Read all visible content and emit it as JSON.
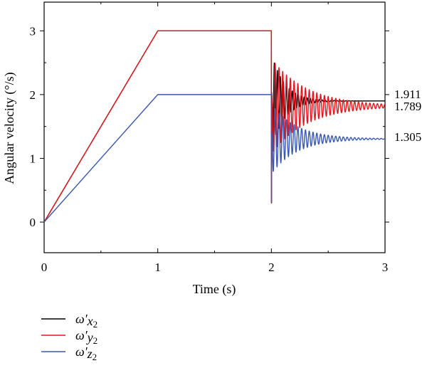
{
  "chart_data": {
    "type": "line",
    "xlabel": "Time (s)",
    "ylabel": "Angular velocity (°/s)",
    "xlim": [
      0,
      3
    ],
    "ylim": [
      -0.48,
      3.45
    ],
    "xticks": [
      "0",
      "1",
      "2",
      "3"
    ],
    "yticks": [
      "0",
      "1",
      "2",
      "3"
    ],
    "grid": false,
    "legend_position": "bottom-left",
    "series": [
      {
        "name": "ω′x₂",
        "legend": {
          "base": "ω′",
          "sub1": "x",
          "sub2": "2"
        },
        "color": "#000000",
        "points": [
          [
            0,
            0
          ],
          [
            1,
            3
          ],
          [
            2,
            3
          ]
        ],
        "response": {
          "start": 2.0,
          "peak_t": 2.04,
          "peak": 2.58,
          "final": 1.9,
          "freq": 38,
          "decay": 8.5
        }
      },
      {
        "name": "ω′y₂",
        "legend": {
          "base": "ω′",
          "sub1": "y",
          "sub2": "2"
        },
        "color": "#e8141b",
        "points": [
          [
            0,
            0
          ],
          [
            1,
            3
          ],
          [
            2,
            3
          ]
        ],
        "response": {
          "start": 2.0,
          "peak_t": 2.02,
          "peak": 2.45,
          "final": 1.82,
          "freq": 30,
          "decay": 3.2
        }
      },
      {
        "name": "ω′z₂",
        "legend": {
          "base": "ω′",
          "sub1": "z",
          "sub2": "2"
        },
        "color": "#3a58b4",
        "points": [
          [
            0,
            0
          ],
          [
            1,
            2
          ],
          [
            2,
            2
          ]
        ],
        "response": {
          "start": 2.0,
          "peak_t": 2.0,
          "peak": 0.0,
          "final": 1.305,
          "freq": 30,
          "decay": 4.5
        }
      }
    ],
    "end_labels": [
      "1.911",
      "1.789",
      "1.305"
    ],
    "end_values": [
      1.911,
      1.789,
      1.305
    ]
  }
}
